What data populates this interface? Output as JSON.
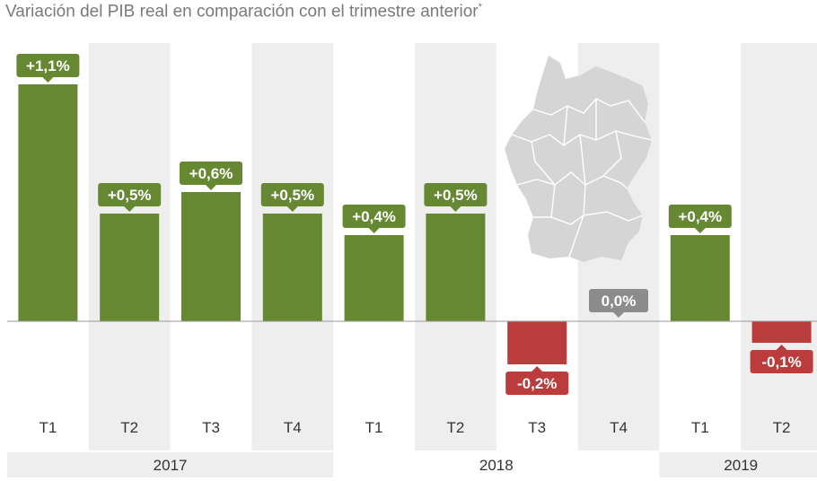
{
  "title": "Variación del PIB real en comparación con el trimestre anterior",
  "title_mark": "*",
  "colors": {
    "positive": "#668833",
    "negative": "#bb3c3c",
    "zero": "#8c8c8c",
    "band": "#eeeeee",
    "map": "#d5d5d5"
  },
  "map_icon": "germany-map-icon",
  "chart_data": {
    "type": "bar",
    "title": "Variación del PIB real en comparación con el trimestre anterior",
    "categories": [
      "T1",
      "T2",
      "T3",
      "T4",
      "T1",
      "T2",
      "T3",
      "T4",
      "T1",
      "T2"
    ],
    "years": [
      {
        "label": "2017",
        "count": 4
      },
      {
        "label": "2018",
        "count": 4
      },
      {
        "label": "2019",
        "count": 2
      }
    ],
    "values": [
      1.1,
      0.5,
      0.6,
      0.5,
      0.4,
      0.5,
      -0.2,
      0.0,
      0.4,
      -0.1
    ],
    "data_labels": [
      "+1,1%",
      "+0,5%",
      "+0,6%",
      "+0,5%",
      "+0,4%",
      "+0,5%",
      "-0,2%",
      "0,0%",
      "+0,4%",
      "-0,1%"
    ],
    "ylim": [
      -0.2,
      1.1
    ],
    "grid": false,
    "legend": "none"
  }
}
